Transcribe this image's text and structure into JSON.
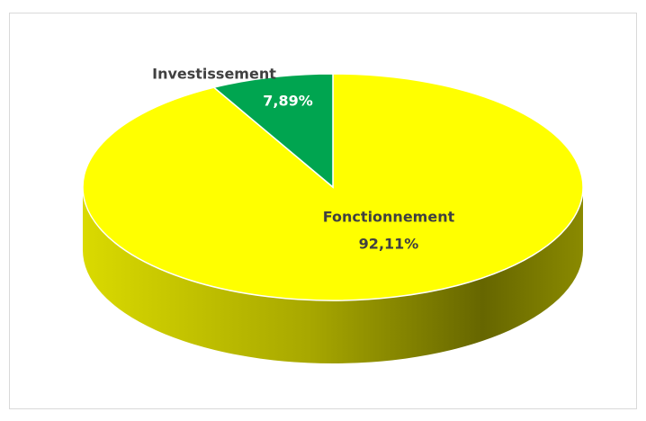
{
  "chart_data": {
    "type": "pie3d",
    "categories": [
      "Fonctionnement",
      "Investissement"
    ],
    "values": [
      92.11,
      7.89
    ],
    "value_labels": [
      "92,11%",
      "7,89%"
    ],
    "colors": [
      "#ffff00",
      "#00a550"
    ]
  }
}
